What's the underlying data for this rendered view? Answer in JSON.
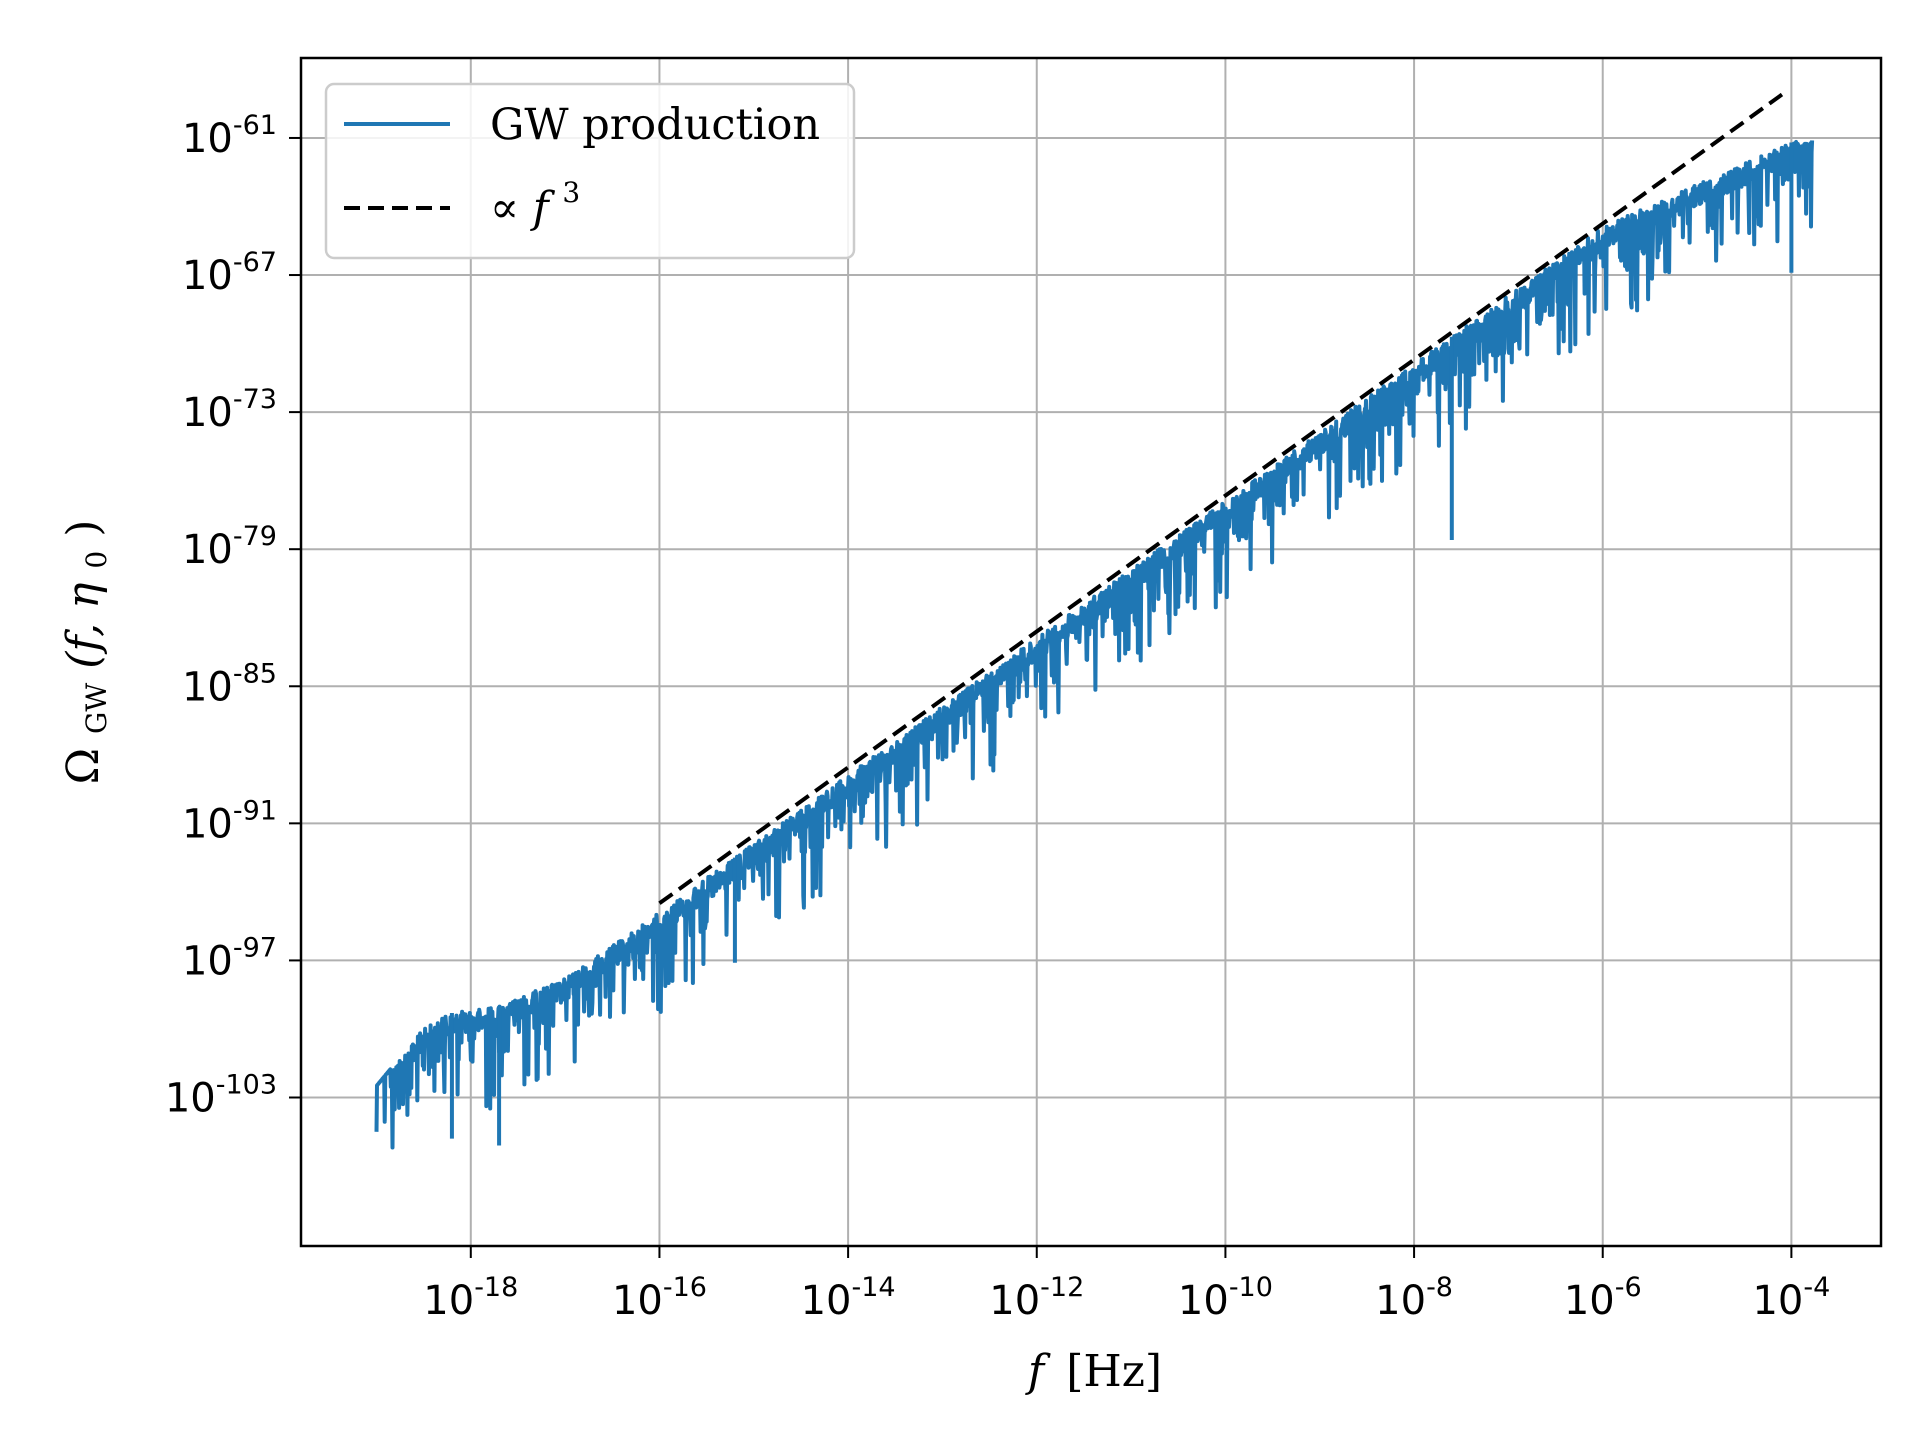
{
  "chart_data": {
    "type": "line",
    "title": "",
    "xlabel": "f [Hz]",
    "ylabel": "Ω_GW(f, η0)",
    "xscale": "log",
    "yscale": "log",
    "xlim_log10": [
      -19.8,
      -3.05
    ],
    "ylim_log10": [
      -109.5,
      -57.5
    ],
    "grid": true,
    "x_ticks": [
      {
        "base": "10",
        "exp": "-18",
        "log10": -18
      },
      {
        "base": "10",
        "exp": "-16",
        "log10": -16
      },
      {
        "base": "10",
        "exp": "-14",
        "log10": -14
      },
      {
        "base": "10",
        "exp": "-12",
        "log10": -12
      },
      {
        "base": "10",
        "exp": "-10",
        "log10": -10
      },
      {
        "base": "10",
        "exp": "-8",
        "log10": -8
      },
      {
        "base": "10",
        "exp": "-6",
        "log10": -6
      },
      {
        "base": "10",
        "exp": "-4",
        "log10": -4
      }
    ],
    "y_ticks": [
      {
        "base": "10",
        "exp": "-61",
        "log10": -61
      },
      {
        "base": "10",
        "exp": "-67",
        "log10": -67
      },
      {
        "base": "10",
        "exp": "-73",
        "log10": -73
      },
      {
        "base": "10",
        "exp": "-79",
        "log10": -79
      },
      {
        "base": "10",
        "exp": "-85",
        "log10": -85
      },
      {
        "base": "10",
        "exp": "-91",
        "log10": -91
      },
      {
        "base": "10",
        "exp": "-97",
        "log10": -97
      },
      {
        "base": "10",
        "exp": "-103",
        "log10": -103
      }
    ],
    "legend_position": "top-left",
    "series": [
      {
        "name": "GW production",
        "style": "solid",
        "color": "#1f77b4",
        "envelope_log10": [
          {
            "x": -19.0,
            "y": -102.5
          },
          {
            "x": -18.5,
            "y": -100.0
          },
          {
            "x": -18.2,
            "y": -99.3
          },
          {
            "x": -17.7,
            "y": -99.0
          },
          {
            "x": -17.0,
            "y": -97.8
          },
          {
            "x": -16.3,
            "y": -95.8
          },
          {
            "x": -16.0,
            "y": -94.9
          },
          {
            "x": -14.0,
            "y": -88.9
          },
          {
            "x": -12.0,
            "y": -82.9
          },
          {
            "x": -10.0,
            "y": -76.9
          },
          {
            "x": -8.0,
            "y": -70.9
          },
          {
            "x": -6.0,
            "y": -64.9
          },
          {
            "x": -4.0,
            "y": -61.2
          },
          {
            "x": -3.78,
            "y": -61.0
          }
        ],
        "oscillation_start_log10": -18.85,
        "oscillation_depth_decades": 4.5,
        "deepest_dips_log10": [
          {
            "x": -18.2,
            "y": -104.8
          },
          {
            "x": -17.7,
            "y": -105.1
          },
          {
            "x": -15.2,
            "y": -97.1
          },
          {
            "x": -7.6,
            "y": -78.6
          },
          {
            "x": -4.0,
            "y": -66.9
          }
        ]
      },
      {
        "name": "∝ f³",
        "style": "dashed",
        "color": "#000000",
        "slope": 3,
        "points_log10": [
          {
            "x": -16.0,
            "y": -94.5
          },
          {
            "x": -4.1,
            "y": -59.1
          }
        ]
      }
    ]
  },
  "legend": {
    "entries": [
      {
        "label": "GW production"
      },
      {
        "label_prefix": "∝ ",
        "label_var": "f",
        "label_sup": "3"
      }
    ]
  },
  "axes": {
    "x_label_var": "f",
    "x_label_unit": "[Hz]",
    "y_label_sym": "Ω",
    "y_label_sub": "GW",
    "y_label_args": "(f, η",
    "y_label_args_sub": "0",
    "y_label_close": ")"
  }
}
